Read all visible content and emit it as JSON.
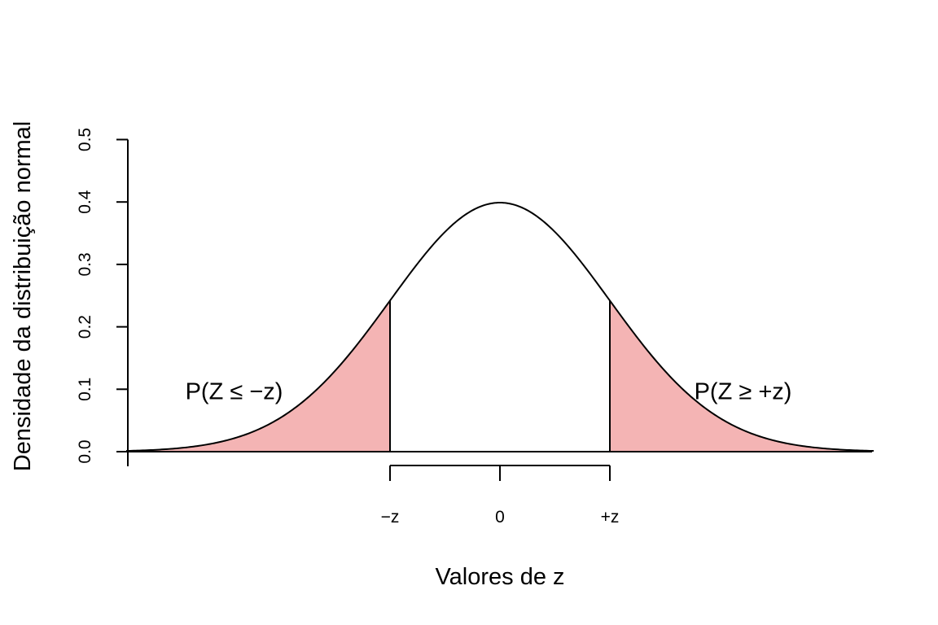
{
  "chart_data": {
    "type": "area",
    "title": "",
    "xlabel": "Valores de z",
    "ylabel": "Densidade da distribuição normal",
    "xlim": [
      -3.4,
      3.4
    ],
    "ylim": [
      0,
      0.5
    ],
    "y_ticks": [
      0.0,
      0.1,
      0.2,
      0.3,
      0.4,
      0.5
    ],
    "y_tick_labels": [
      "0.0",
      "0.1",
      "0.2",
      "0.3",
      "0.4",
      "0.5"
    ],
    "x_ticks": [
      {
        "value": -1,
        "label": "−z"
      },
      {
        "value": 0,
        "label": "0"
      },
      {
        "value": 1,
        "label": "+z"
      }
    ],
    "series": [
      {
        "name": "",
        "distribution": "standard normal density",
        "x_from": -3.4,
        "x_to": 3.4
      }
    ],
    "critical_z": 1,
    "shaded_regions": [
      {
        "from": -3.4,
        "to": -1,
        "color": "#F4B4B4",
        "label": "P(Z ≤ −z)"
      },
      {
        "from": 1,
        "to": 3.4,
        "color": "#F4B4B4",
        "label": "P(Z ≥ +z)"
      }
    ],
    "grid": false,
    "legend": "none",
    "annotations": [
      {
        "text": "P(Z ≤ −z)",
        "x": -2.1,
        "y": 0.1
      },
      {
        "text": "P(Z ≥ +z)",
        "x": 2.1,
        "y": 0.1
      }
    ]
  }
}
